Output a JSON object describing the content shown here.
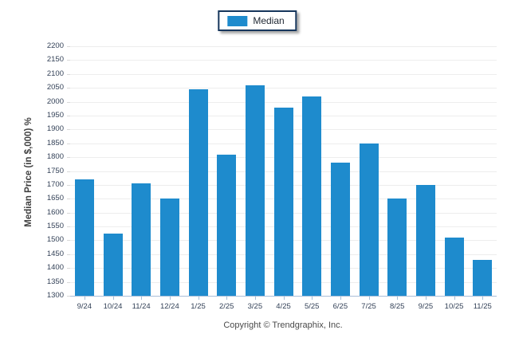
{
  "legend": {
    "label": "Median"
  },
  "footer": {
    "copyright": "Copyright © Trendgraphix, Inc."
  },
  "colors": {
    "bar": "#1e8bcd",
    "gridline": "#ededed",
    "axis_line": "#a9bfd8",
    "y_tick": "#d9d9d9",
    "tick_label": "#344258",
    "axis_title": "#404040",
    "legend_border": "#16365c"
  },
  "chart_data": {
    "type": "bar",
    "title": "",
    "xlabel": "",
    "ylabel": "Median Price (in $,000) %",
    "categories": [
      "9/24",
      "10/24",
      "11/24",
      "12/24",
      "1/25",
      "2/25",
      "3/25",
      "4/25",
      "5/25",
      "6/25",
      "7/25",
      "8/25",
      "9/25",
      "10/25",
      "11/25"
    ],
    "series": [
      {
        "name": "Median",
        "values": [
          1720,
          1525,
          1705,
          1650,
          2045,
          1810,
          2060,
          1980,
          2020,
          1780,
          1850,
          1650,
          1700,
          1510,
          1430
        ]
      }
    ],
    "ylim": [
      1300,
      2200
    ],
    "ytick_step": 50,
    "grid": "horizontal",
    "legend_position": "top-center"
  }
}
